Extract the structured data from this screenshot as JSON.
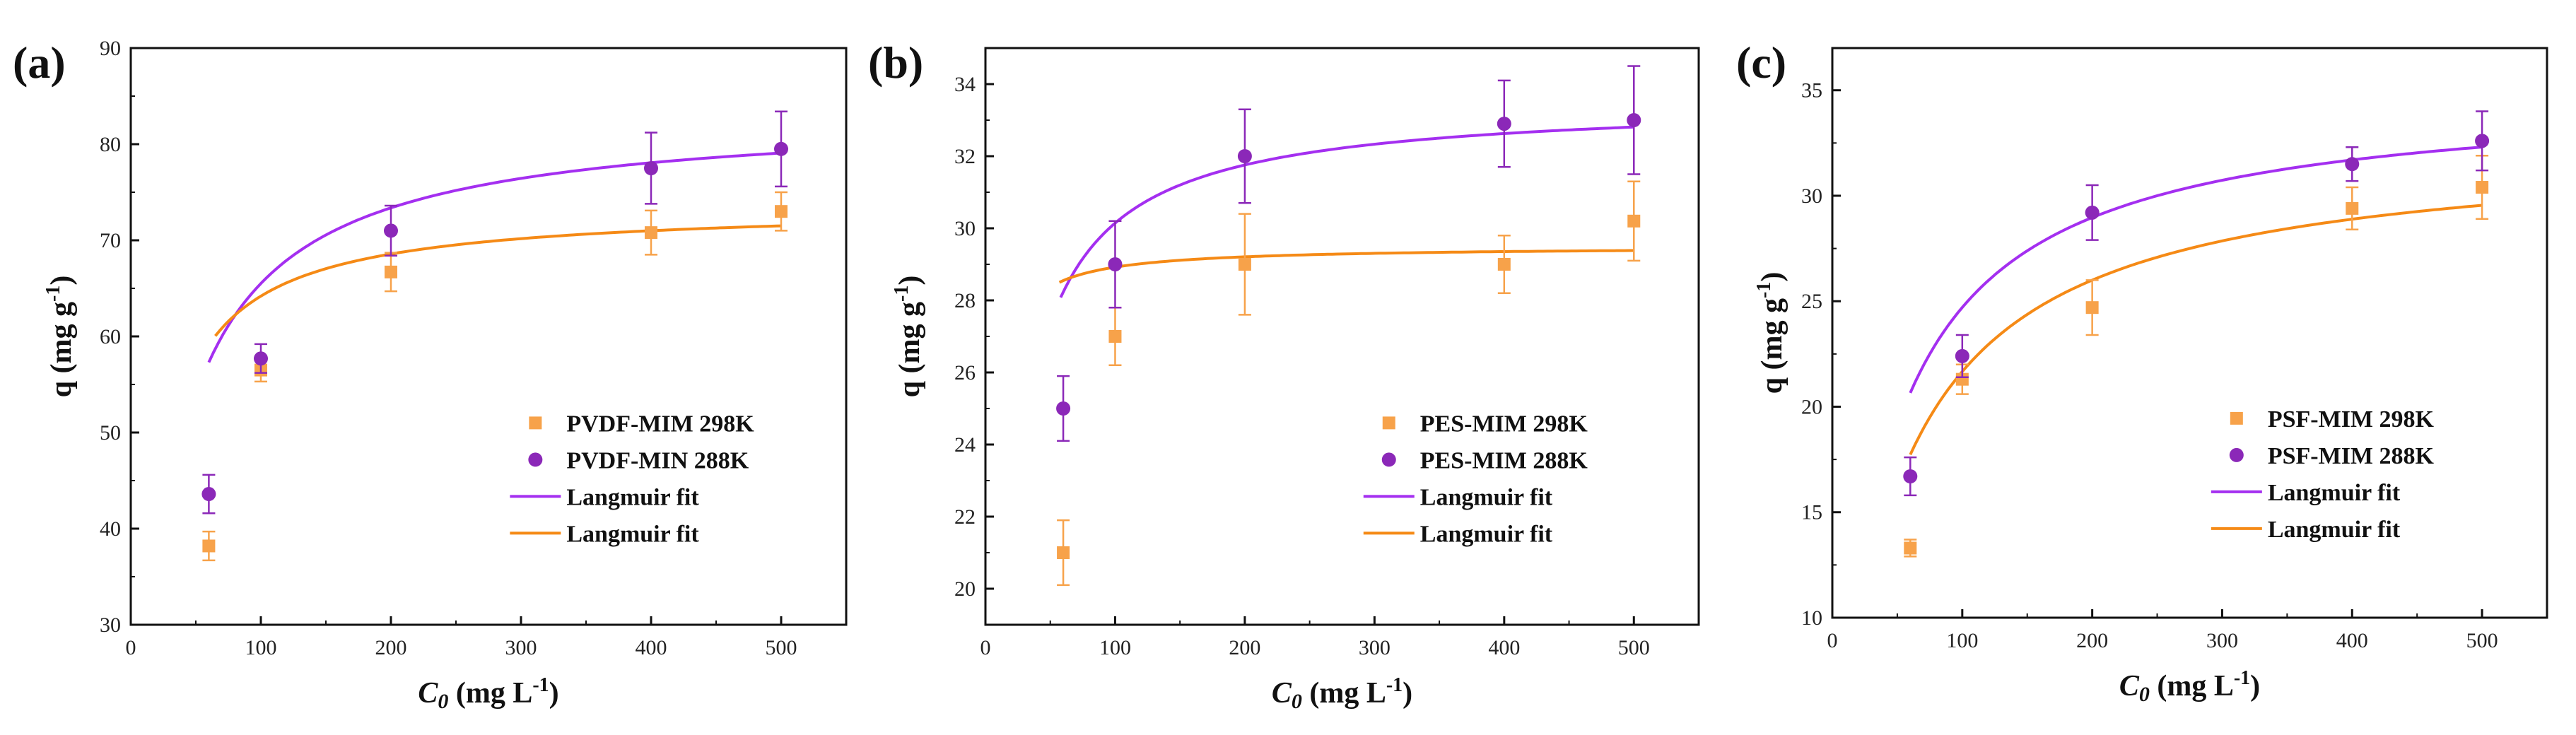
{
  "chart_data": [
    {
      "type": "scatter",
      "panel_label": "(a)",
      "xlabel_main": "C",
      "xlabel_sub": "0",
      "xlabel_unit": " (mg L",
      "xlabel_exp": "-1",
      "xlabel_close": ")",
      "ylabel_main": "q (mg g",
      "ylabel_exp": "-1",
      "ylabel_close": ")",
      "xlim": [
        0,
        550
      ],
      "ylim": [
        30,
        90
      ],
      "xticks": [
        0,
        100,
        200,
        300,
        400,
        500
      ],
      "yticks": [
        30,
        40,
        50,
        60,
        70,
        80,
        90
      ],
      "legend_position": "lower-right",
      "series": [
        {
          "name": "PVDF-MIM 298K",
          "marker": "square",
          "color": "#f7a24a",
          "x": [
            60,
            100,
            200,
            400,
            500
          ],
          "y": [
            38.2,
            56.5,
            66.7,
            70.8,
            73.0
          ],
          "err": [
            1.5,
            1.2,
            2.0,
            2.3,
            2.0
          ]
        },
        {
          "name": "PVDF-MIN 288K",
          "marker": "circle",
          "color": "#8b28b8",
          "x": [
            60,
            100,
            200,
            400,
            500
          ],
          "y": [
            43.6,
            57.7,
            71.0,
            77.5,
            79.5
          ],
          "err": [
            2.0,
            1.5,
            2.6,
            3.7,
            3.9
          ]
        }
      ],
      "fits": [
        {
          "name": "Langmuir fit",
          "color": "#a42ff0",
          "qmax": 83.4,
          "KL": 0.0366,
          "x0": 60,
          "x1": 500
        },
        {
          "name": "Langmuir fit",
          "color": "#f58a16",
          "qmax": 73.6,
          "KL": 0.0682,
          "x0": 65,
          "x1": 500
        }
      ]
    },
    {
      "type": "scatter",
      "panel_label": "(b)",
      "xlabel_main": "C",
      "xlabel_sub": "0",
      "xlabel_unit": " (mg L",
      "xlabel_exp": "-1",
      "xlabel_close": ")",
      "ylabel_main": "q (mg g",
      "ylabel_exp": "-1",
      "ylabel_close": ")",
      "xlim": [
        0,
        550
      ],
      "ylim": [
        19,
        35
      ],
      "xticks": [
        0,
        100,
        200,
        300,
        400,
        500
      ],
      "yticks": [
        20,
        22,
        24,
        26,
        28,
        30,
        32,
        34
      ],
      "legend_position": "lower-right",
      "series": [
        {
          "name": "PES-MIM 298K",
          "marker": "square",
          "color": "#f7a24a",
          "x": [
            60,
            100,
            200,
            400,
            500
          ],
          "y": [
            21.0,
            27.0,
            29.0,
            29.0,
            30.2
          ],
          "err": [
            0.9,
            0.8,
            1.4,
            0.8,
            1.1
          ]
        },
        {
          "name": "PES-MIM 288K",
          "marker": "circle",
          "color": "#8b28b8",
          "x": [
            60,
            100,
            200,
            400,
            500
          ],
          "y": [
            25.0,
            29.0,
            32.0,
            32.9,
            33.0
          ],
          "err": [
            0.9,
            1.2,
            1.3,
            1.2,
            1.5
          ]
        }
      ],
      "fits": [
        {
          "name": "Langmuir fit",
          "color": "#a42ff0",
          "qmax": 33.55,
          "KL": 0.0885,
          "x0": 58,
          "x1": 500
        },
        {
          "name": "Langmuir fit",
          "color": "#f58a16",
          "qmax": 29.5,
          "KL": 0.5,
          "x0": 57,
          "x1": 500
        }
      ]
    },
    {
      "type": "scatter",
      "panel_label": "(c)",
      "xlabel_main": "C",
      "xlabel_sub": "0",
      "xlabel_unit": " (mg L",
      "xlabel_exp": "-1",
      "xlabel_close": ")",
      "ylabel_main": "q (mg g",
      "ylabel_exp": "-1",
      "ylabel_close": ")",
      "xlim": [
        0,
        550
      ],
      "ylim": [
        10,
        37
      ],
      "xticks": [
        0,
        100,
        200,
        300,
        400,
        500
      ],
      "yticks": [
        10,
        15,
        20,
        25,
        30,
        35
      ],
      "legend_position": "lower-right",
      "series": [
        {
          "name": "PSF-MIM 298K",
          "marker": "square",
          "color": "#f7a24a",
          "x": [
            60,
            100,
            200,
            400,
            500
          ],
          "y": [
            13.3,
            21.3,
            24.7,
            29.4,
            30.4
          ],
          "err": [
            0.4,
            0.7,
            1.3,
            1.0,
            1.5
          ]
        },
        {
          "name": "PSF-MIM 288K",
          "marker": "circle",
          "color": "#8b28b8",
          "x": [
            60,
            100,
            200,
            400,
            500
          ],
          "y": [
            16.7,
            22.4,
            29.2,
            31.5,
            32.6
          ],
          "err": [
            0.9,
            1.0,
            1.3,
            0.8,
            1.4
          ]
        }
      ],
      "fits": [
        {
          "name": "Langmuir fit",
          "color": "#a42ff0",
          "qmax": 35.0,
          "KL": 0.024,
          "x0": 60,
          "x1": 500
        },
        {
          "name": "Langmuir fit",
          "color": "#f58a16",
          "qmax": 32.5,
          "KL": 0.02,
          "x0": 60,
          "x1": 500
        }
      ]
    }
  ]
}
